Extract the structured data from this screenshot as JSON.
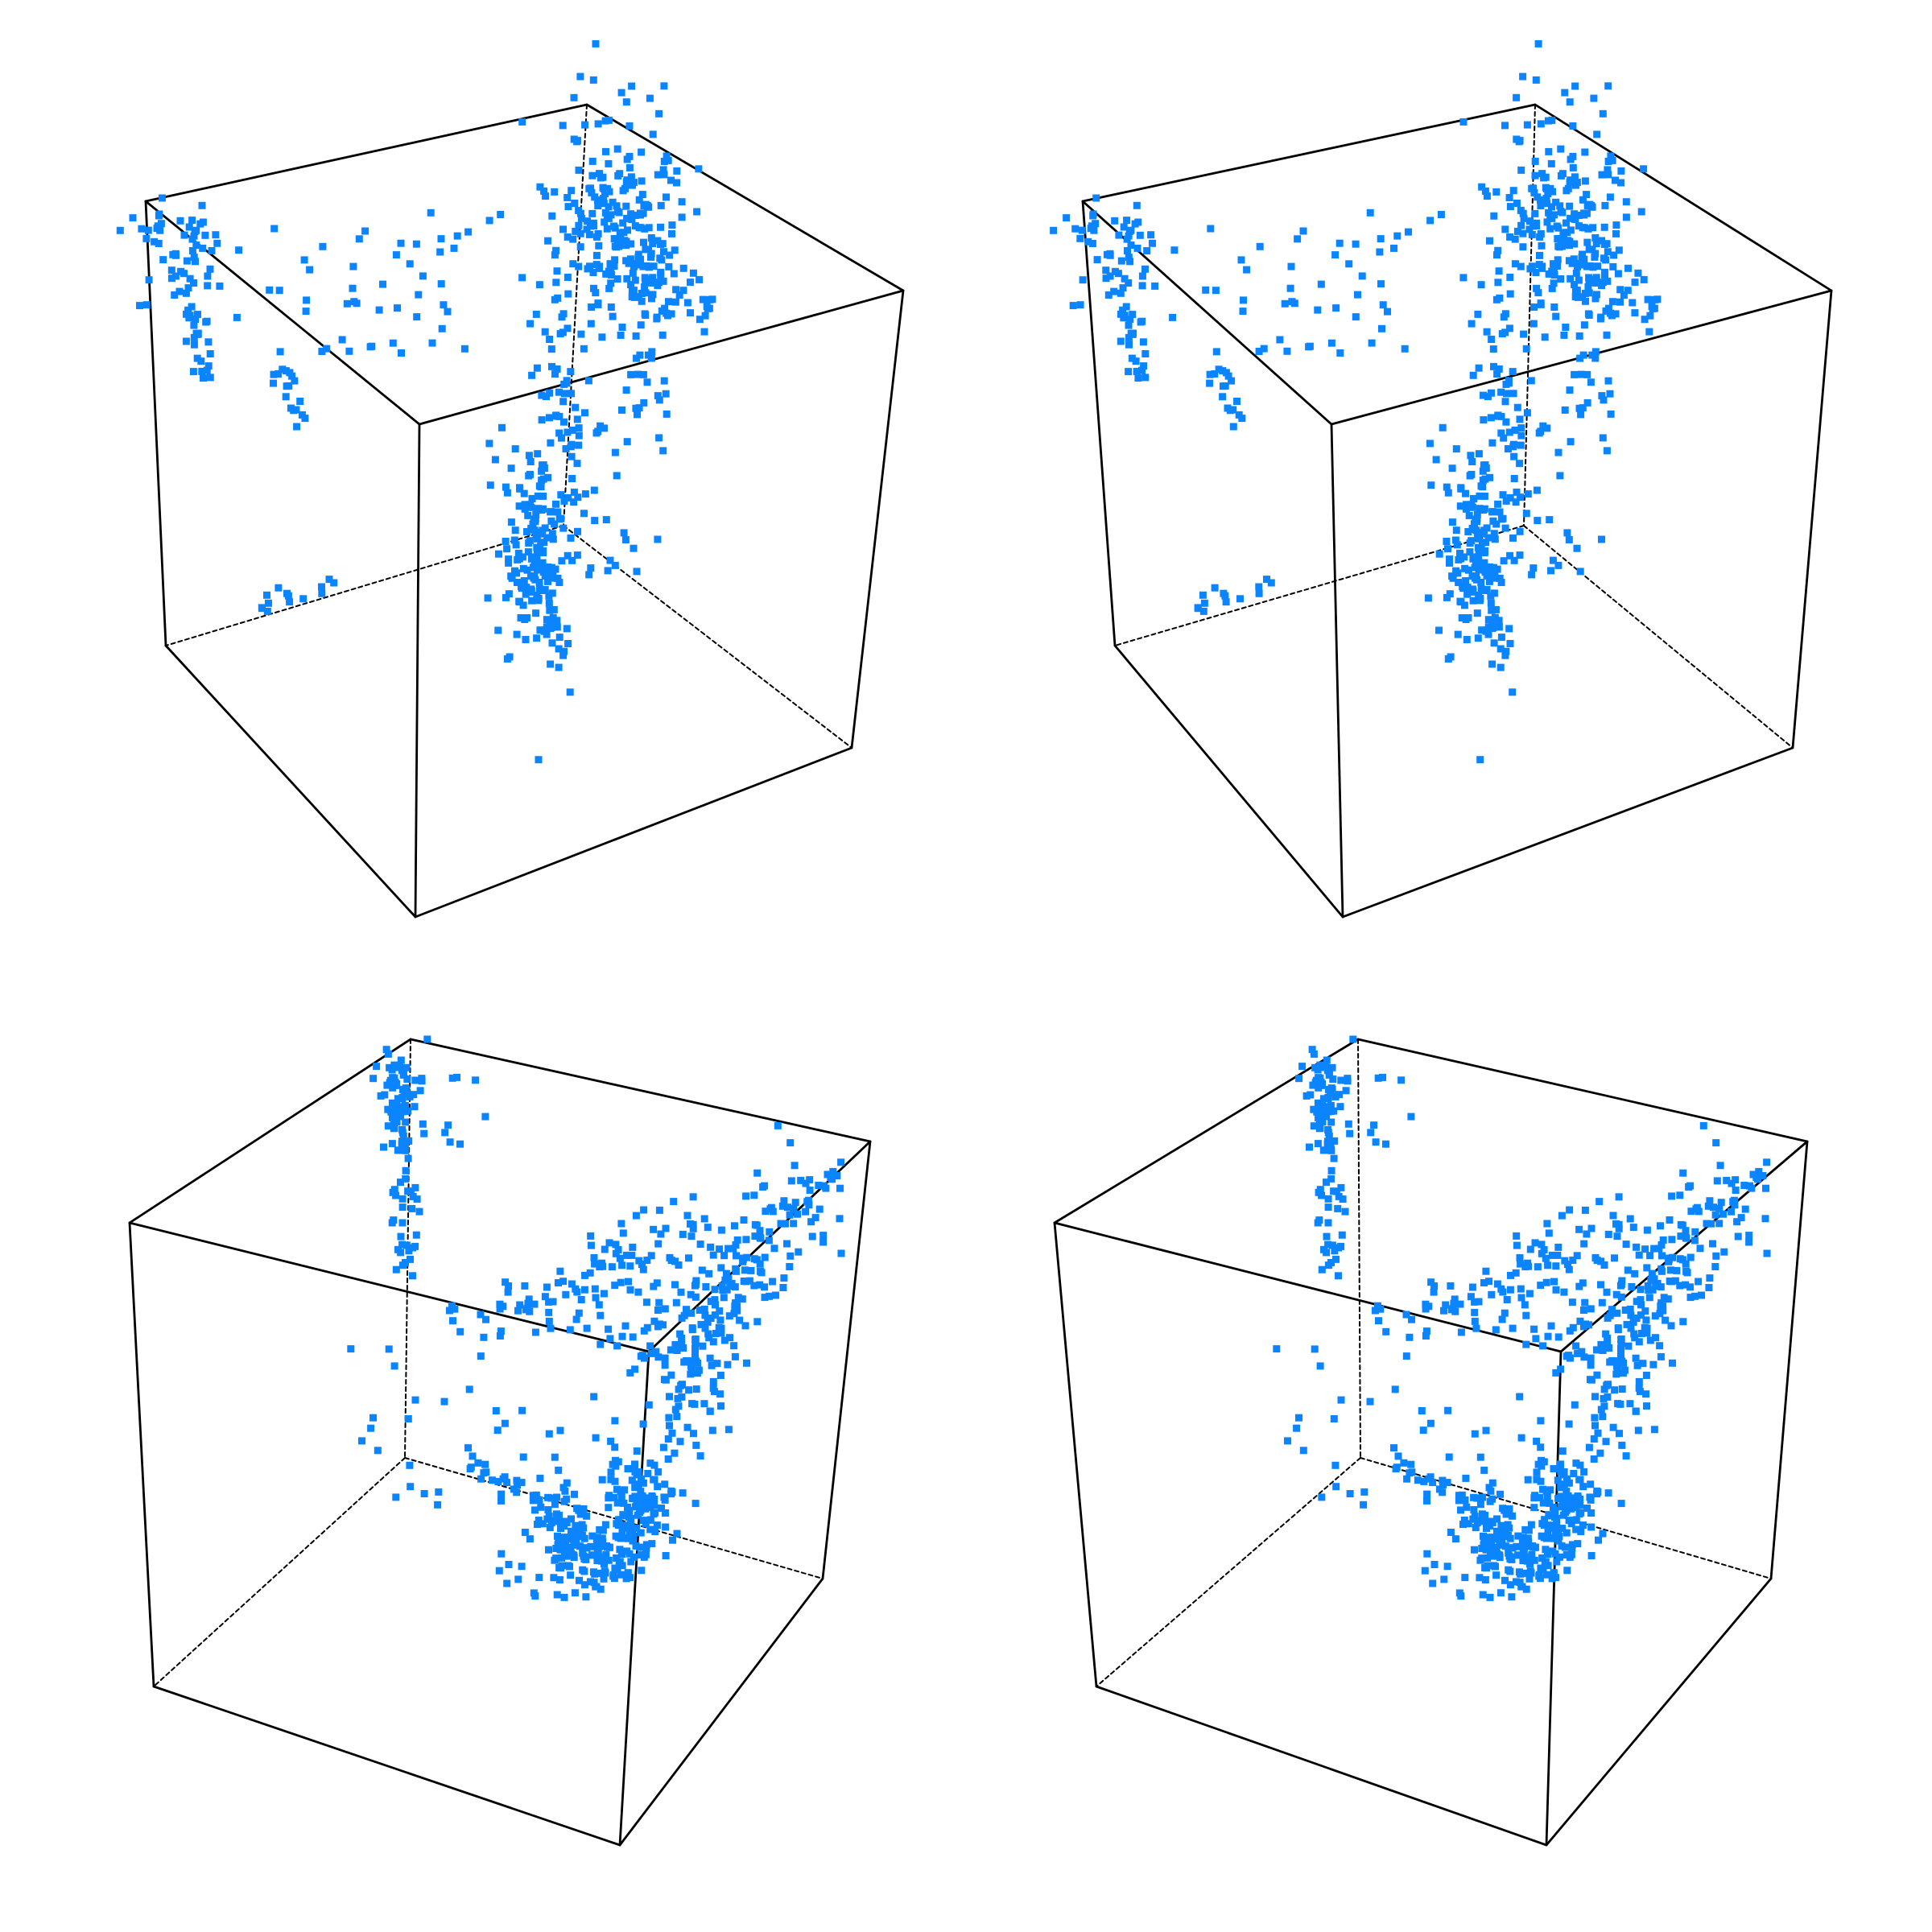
{
  "figure": {
    "background": "#ffffff",
    "marker_color": "#0a84ff",
    "edge_color": "#000000"
  },
  "chart_data": [
    {
      "type": "scatter3d",
      "view": "a",
      "box": "wireframe",
      "grid": false,
      "axis_labels": false,
      "clusters": [
        {
          "name": "",
          "region": "top-left-corner",
          "approx_count": 90
        },
        {
          "name": "",
          "region": "top-face-scattered",
          "approx_count": 45
        },
        {
          "name": "",
          "region": "upper-right-column",
          "approx_count": 330
        },
        {
          "name": "",
          "region": "central-dense",
          "approx_count": 180
        },
        {
          "name": "",
          "region": "bottom-left-edge",
          "approx_count": 14
        }
      ]
    },
    {
      "type": "scatter3d",
      "view": "b",
      "box": "wireframe",
      "grid": false,
      "axis_labels": false,
      "clusters": [
        {
          "name": "",
          "region": "top-left-corner",
          "approx_count": 90
        },
        {
          "name": "",
          "region": "top-face-scattered",
          "approx_count": 45
        },
        {
          "name": "",
          "region": "upper-right-column",
          "approx_count": 330
        },
        {
          "name": "",
          "region": "central-dense",
          "approx_count": 180
        },
        {
          "name": "",
          "region": "bottom-left-edge",
          "approx_count": 14
        }
      ]
    },
    {
      "type": "scatter3d",
      "view": "c",
      "box": "wireframe",
      "grid": false,
      "axis_labels": false,
      "clusters": [
        {
          "name": "",
          "region": "top-vertical-streak",
          "approx_count": 120
        },
        {
          "name": "",
          "region": "right-diagonal-band",
          "approx_count": 300
        },
        {
          "name": "",
          "region": "lower-central-dense",
          "approx_count": 260
        },
        {
          "name": "",
          "region": "sparse-middle",
          "approx_count": 60
        }
      ]
    },
    {
      "type": "scatter3d",
      "view": "d",
      "box": "wireframe",
      "grid": false,
      "axis_labels": false,
      "clusters": [
        {
          "name": "",
          "region": "top-vertical-streak",
          "approx_count": 120
        },
        {
          "name": "",
          "region": "right-diagonal-band",
          "approx_count": 300
        },
        {
          "name": "",
          "region": "lower-central-dense",
          "approx_count": 260
        },
        {
          "name": "",
          "region": "sparse-middle",
          "approx_count": 60
        }
      ]
    }
  ]
}
